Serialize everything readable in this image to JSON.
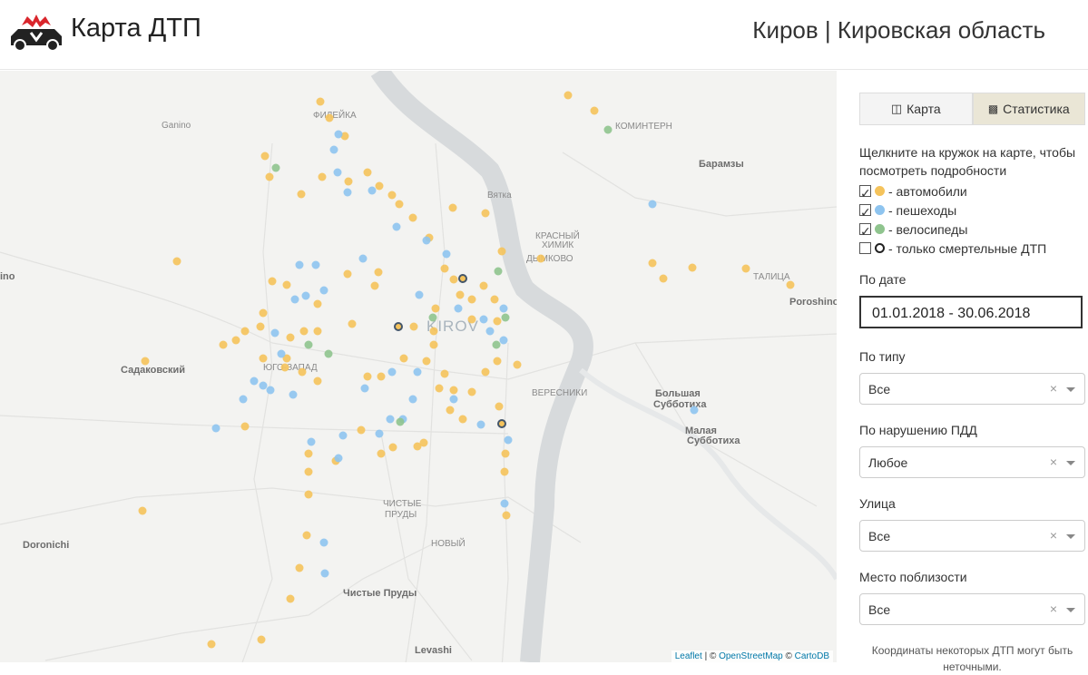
{
  "header": {
    "title": "Карта ДТП",
    "region": "Киров | Кировская область"
  },
  "map": {
    "labels": [
      "Ganino",
      "ФИЛЕЙКА",
      "КОМИНТЕРН",
      "Барамзы",
      "Вятка",
      "КРАСНЫЙ",
      "ХИМИК",
      "ДЫМКОВО",
      "ТАЛИЦА",
      "Poroshino",
      "KIROV",
      "Садаковский",
      "ЮГО-ЗАПАД",
      "ВЕРЕСНИКИ",
      "Большая",
      "Субботиха",
      "Малая",
      "Субботиха",
      "ЧИСТЫЕ",
      "ПРУДЫ",
      "НОВЫЙ",
      "Doronichi",
      "Чистые Пруды",
      "Levashi",
      "ino"
    ],
    "attribution": {
      "leaflet": "Leaflet",
      "sep": "| ©",
      "osm": "OpenStreetMap",
      "copy": "©",
      "carto": "CartoDB"
    }
  },
  "sidebar": {
    "tabs": [
      "Карта",
      "Статистика"
    ],
    "hint": "Щелкните на кружок на карте, чтобы посмотреть подробности",
    "legend": [
      "- автомобили",
      "- пешеходы",
      "- велосипеды",
      "- только смертельные ДТП"
    ],
    "filters": [
      {
        "label": "По дате",
        "value": "01.01.2018 - 30.06.2018"
      },
      {
        "label": "По типу",
        "value": "Все"
      },
      {
        "label": "По нарушению ПДД",
        "value": "Любое"
      },
      {
        "label": "Улица",
        "value": "Все"
      },
      {
        "label": "Место поблизости",
        "value": "Все"
      }
    ],
    "note": "Координаты некоторых ДТП могут быть неточными."
  }
}
